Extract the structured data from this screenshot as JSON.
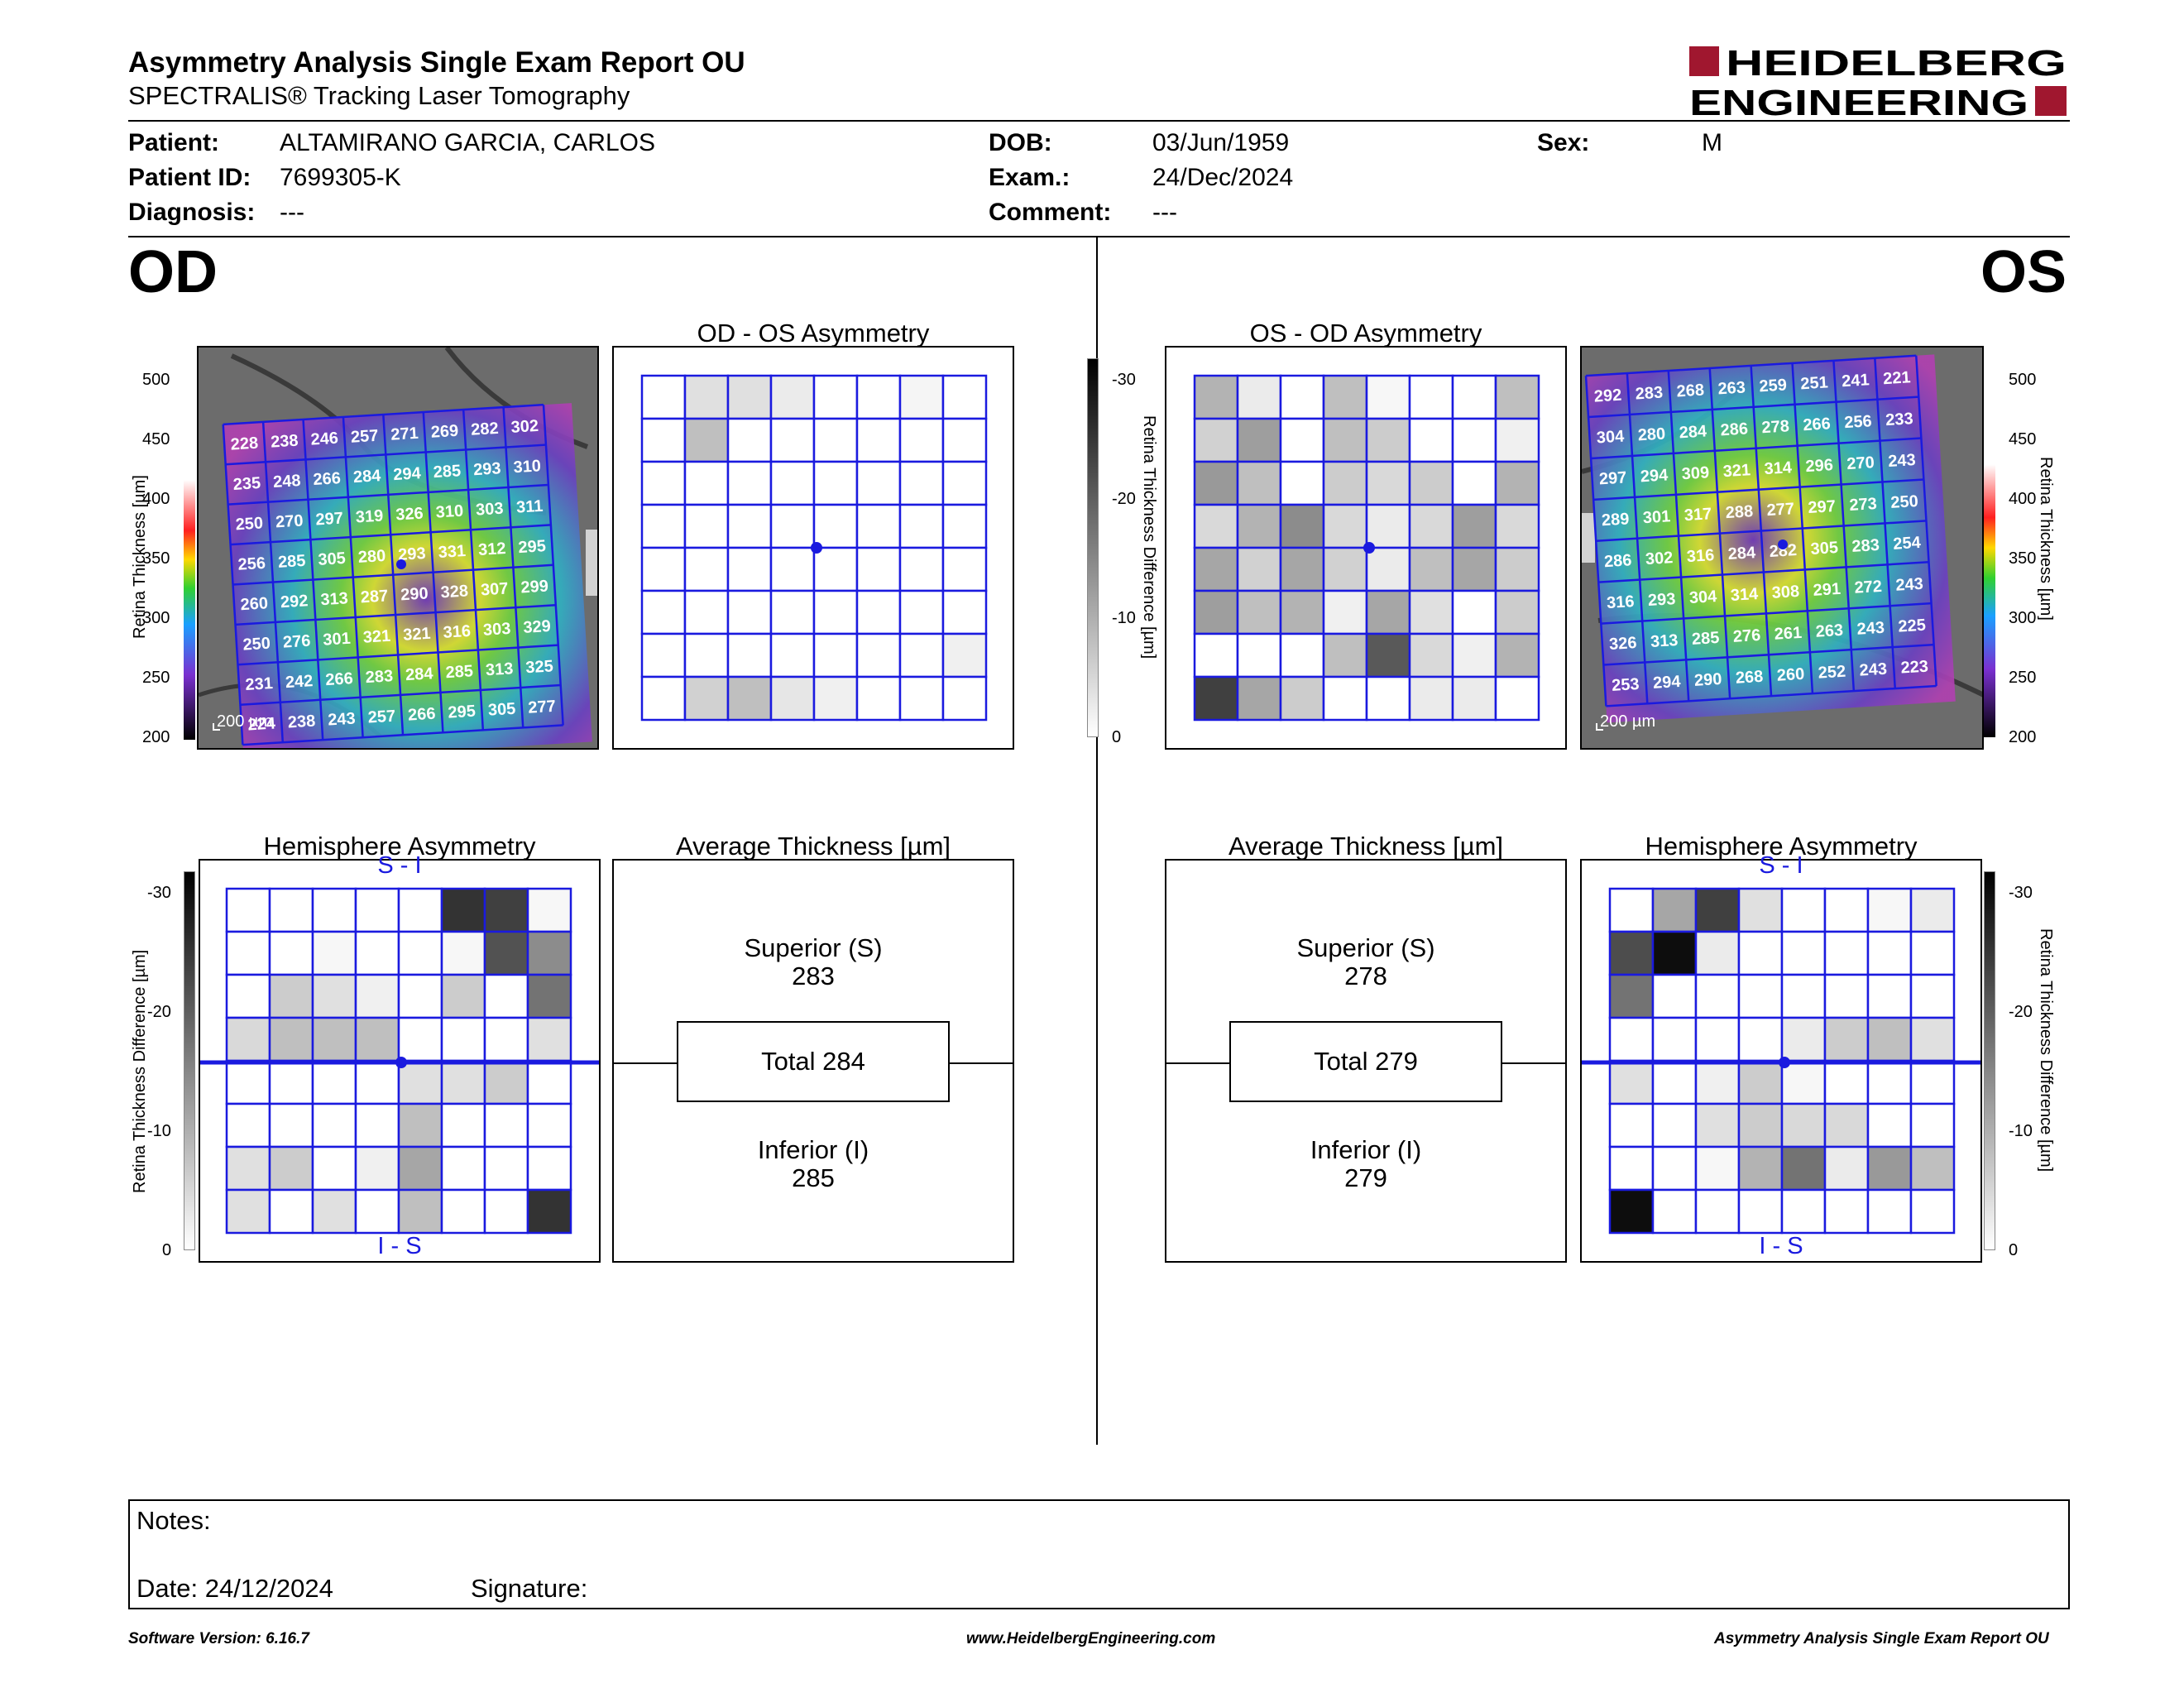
{
  "header": {
    "title": "Asymmetry Analysis Single Exam Report OU",
    "subtitle": "SPECTRALIS® Tracking Laser Tomography",
    "logo_line1": "HEIDELBERG",
    "logo_line2": "ENGINEERING"
  },
  "patient": {
    "patient_label": "Patient:",
    "patient_value": "ALTAMIRANO GARCIA, CARLOS",
    "id_label": "Patient ID:",
    "id_value": "7699305-K",
    "diagnosis_label": "Diagnosis:",
    "diagnosis_value": "---",
    "dob_label": "DOB:",
    "dob_value": "03/Jun/1959",
    "exam_label": "Exam.:",
    "exam_value": "24/Dec/2024",
    "comment_label": "Comment:",
    "comment_value": "---",
    "sex_label": "Sex:",
    "sex_value": "M"
  },
  "od": {
    "eye_label": "OD",
    "asym_title": "OD - OS Asymmetry",
    "hemi_title": "Hemisphere Asymmetry",
    "avg_title": "Average Thickness [µm]",
    "superior_label": "Superior (S)",
    "superior_value": "283",
    "total_label": "Total 284",
    "inferior_label": "Inferior (I)",
    "inferior_value": "285",
    "si_label": "S - I",
    "is_label": "I - S",
    "scale_label": "200 µm",
    "thickness_grid": [
      [
        228,
        238,
        246,
        257,
        271,
        269,
        282,
        302
      ],
      [
        235,
        248,
        266,
        284,
        294,
        285,
        293,
        310
      ],
      [
        250,
        270,
        297,
        319,
        326,
        310,
        303,
        311
      ],
      [
        256,
        285,
        305,
        280,
        293,
        331,
        312,
        295
      ],
      [
        260,
        292,
        313,
        287,
        290,
        328,
        307,
        299
      ],
      [
        250,
        276,
        301,
        321,
        321,
        316,
        303,
        329
      ],
      [
        231,
        242,
        266,
        283,
        284,
        285,
        313,
        325
      ],
      [
        224,
        238,
        243,
        257,
        266,
        295,
        305,
        277
      ]
    ],
    "asym_grid": [
      [
        0,
        0.12,
        0.12,
        0.08,
        0,
        0,
        0.04,
        0
      ],
      [
        0,
        0.25,
        0,
        0,
        0,
        0,
        0,
        0
      ],
      [
        0,
        0,
        0,
        0,
        0,
        0,
        0,
        0
      ],
      [
        0,
        0,
        0,
        0,
        0,
        0,
        0,
        0
      ],
      [
        0,
        0,
        0,
        0,
        0,
        0,
        0,
        0
      ],
      [
        0,
        0,
        0,
        0,
        0,
        0,
        0,
        0
      ],
      [
        0,
        0,
        0,
        0,
        0,
        0,
        0,
        0.06
      ],
      [
        0,
        0.18,
        0.25,
        0.1,
        0.06,
        0,
        0,
        0
      ]
    ],
    "hemi_grid": [
      [
        0,
        0,
        0,
        0,
        0,
        0.8,
        0.75,
        0.03
      ],
      [
        0,
        0,
        0.03,
        0,
        0,
        0.03,
        0.68,
        0.45
      ],
      [
        0,
        0.2,
        0.12,
        0.06,
        0,
        0.2,
        0,
        0.55
      ],
      [
        0.15,
        0.25,
        0.25,
        0.25,
        0,
        0,
        0,
        0.12
      ],
      [
        0,
        0,
        0,
        0,
        0.12,
        0.12,
        0.2,
        0
      ],
      [
        0,
        0,
        0,
        0,
        0.25,
        0,
        0,
        0
      ],
      [
        0.12,
        0.2,
        0,
        0.06,
        0.35,
        0,
        0,
        0
      ],
      [
        0.12,
        0,
        0.12,
        0,
        0.25,
        0,
        0,
        0.8
      ]
    ]
  },
  "os": {
    "eye_label": "OS",
    "asym_title": "OS - OD Asymmetry",
    "hemi_title": "Hemisphere Asymmetry",
    "avg_title": "Average Thickness [µm]",
    "superior_label": "Superior (S)",
    "superior_value": "278",
    "total_label": "Total 279",
    "inferior_label": "Inferior (I)",
    "inferior_value": "279",
    "si_label": "S - I",
    "is_label": "I - S",
    "scale_label": "200 µm",
    "thickness_grid": [
      [
        292,
        283,
        268,
        263,
        259,
        251,
        241,
        221
      ],
      [
        304,
        280,
        284,
        286,
        278,
        266,
        256,
        233
      ],
      [
        297,
        294,
        309,
        321,
        314,
        296,
        270,
        243
      ],
      [
        289,
        301,
        317,
        288,
        277,
        297,
        273,
        250
      ],
      [
        286,
        302,
        316,
        284,
        282,
        305,
        283,
        254
      ],
      [
        316,
        293,
        304,
        314,
        308,
        291,
        272,
        243
      ],
      [
        326,
        313,
        285,
        276,
        261,
        263,
        243,
        225
      ],
      [
        253,
        294,
        290,
        268,
        260,
        252,
        243,
        223
      ]
    ],
    "asym_grid": [
      [
        0.3,
        0.08,
        0,
        0.25,
        0.03,
        0,
        0,
        0.25
      ],
      [
        0.18,
        0.38,
        0,
        0.25,
        0.2,
        0,
        0,
        0.06
      ],
      [
        0.4,
        0.25,
        0,
        0.2,
        0.15,
        0.2,
        0,
        0.3
      ],
      [
        0.15,
        0.3,
        0.45,
        0.15,
        0.08,
        0.15,
        0.38,
        0.15
      ],
      [
        0.35,
        0.18,
        0.35,
        0.18,
        0.08,
        0.25,
        0.35,
        0.2
      ],
      [
        0.38,
        0.25,
        0.3,
        0.06,
        0.35,
        0.12,
        0,
        0.2
      ],
      [
        0,
        0,
        0,
        0.25,
        0.65,
        0.15,
        0.06,
        0.3
      ],
      [
        0.75,
        0.35,
        0.2,
        0,
        0,
        0.08,
        0.08,
        0
      ]
    ],
    "hemi_grid": [
      [
        0,
        0.35,
        0.75,
        0.12,
        0,
        0,
        0.03,
        0.08
      ],
      [
        0.7,
        0.95,
        0.08,
        0,
        0,
        0,
        0,
        0
      ],
      [
        0.55,
        0,
        0,
        0,
        0,
        0,
        0,
        0
      ],
      [
        0,
        0,
        0,
        0,
        0.08,
        0.2,
        0.25,
        0.12
      ],
      [
        0.12,
        0,
        0.06,
        0.2,
        0.03,
        0,
        0,
        0
      ],
      [
        0,
        0,
        0.12,
        0.2,
        0.15,
        0.15,
        0,
        0
      ],
      [
        0,
        0,
        0.03,
        0.3,
        0.55,
        0.08,
        0.4,
        0.25
      ],
      [
        0.95,
        0,
        0,
        0,
        0,
        0,
        0,
        0
      ]
    ]
  },
  "scales": {
    "thickness_label": "Retina Thickness [µm]",
    "thickness_ticks": [
      "500",
      "450",
      "400",
      "350",
      "300",
      "250",
      "200"
    ],
    "diff_label": "Retina Thickness Difference [µm]",
    "diff_ticks": [
      "-30",
      "-20",
      "-10",
      "0"
    ]
  },
  "notes": {
    "notes_label": "Notes:",
    "date_label": "Date: 24/12/2024",
    "signature_label": "Signature:"
  },
  "footer": {
    "version": "Software Version: 6.16.7",
    "website": "www.HeidelbergEngineering.com",
    "report_name": "Asymmetry Analysis Single Exam Report OU"
  },
  "colors": {
    "grid_line": "#1a1adf",
    "logo_red": "#a0172f"
  }
}
